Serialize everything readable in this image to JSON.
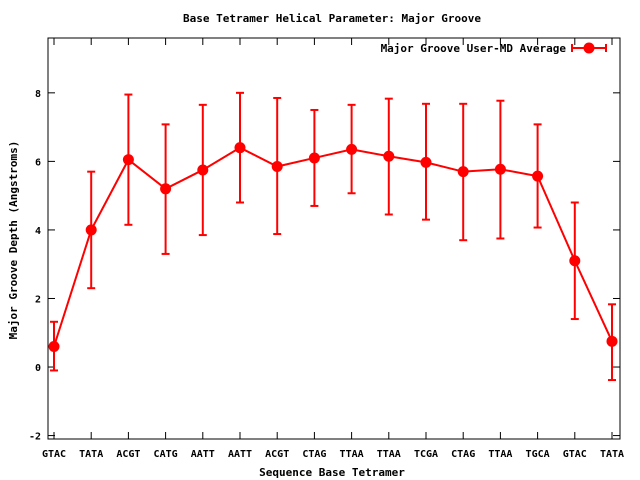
{
  "chart_data": {
    "type": "line",
    "title": "Base Tetramer Helical Parameter: Major Groove",
    "xlabel": "Sequence Base Tetramer",
    "ylabel": "Major Groove Depth (Angstroms)",
    "ylim": [
      -2.1,
      9.6
    ],
    "y_ticks": [
      -2,
      0,
      2,
      4,
      6,
      8
    ],
    "categories": [
      "GTAC",
      "TATA",
      "ACGT",
      "CATG",
      "AATT",
      "AATT",
      "ACGT",
      "CTAG",
      "TTAA",
      "TTAA",
      "TCGA",
      "CTAG",
      "TTAA",
      "TGCA",
      "GTAC",
      "TATA"
    ],
    "legend_position": "top-right",
    "series": [
      {
        "name": "Major Groove User-MD Average",
        "color": "#ff0000",
        "values": [
          0.6,
          4.0,
          6.05,
          5.2,
          5.75,
          6.4,
          5.85,
          6.1,
          6.35,
          6.15,
          5.97,
          5.7,
          5.77,
          5.57,
          3.1,
          0.75
        ],
        "error_low": [
          -0.1,
          2.3,
          4.15,
          3.3,
          3.85,
          4.8,
          3.88,
          4.7,
          5.07,
          4.45,
          4.3,
          3.7,
          3.75,
          4.07,
          1.4,
          -0.38
        ],
        "error_high": [
          1.32,
          5.7,
          7.95,
          7.08,
          7.65,
          8.0,
          7.85,
          7.5,
          7.65,
          7.83,
          7.68,
          7.68,
          7.77,
          7.08,
          4.8,
          1.83
        ]
      }
    ]
  }
}
